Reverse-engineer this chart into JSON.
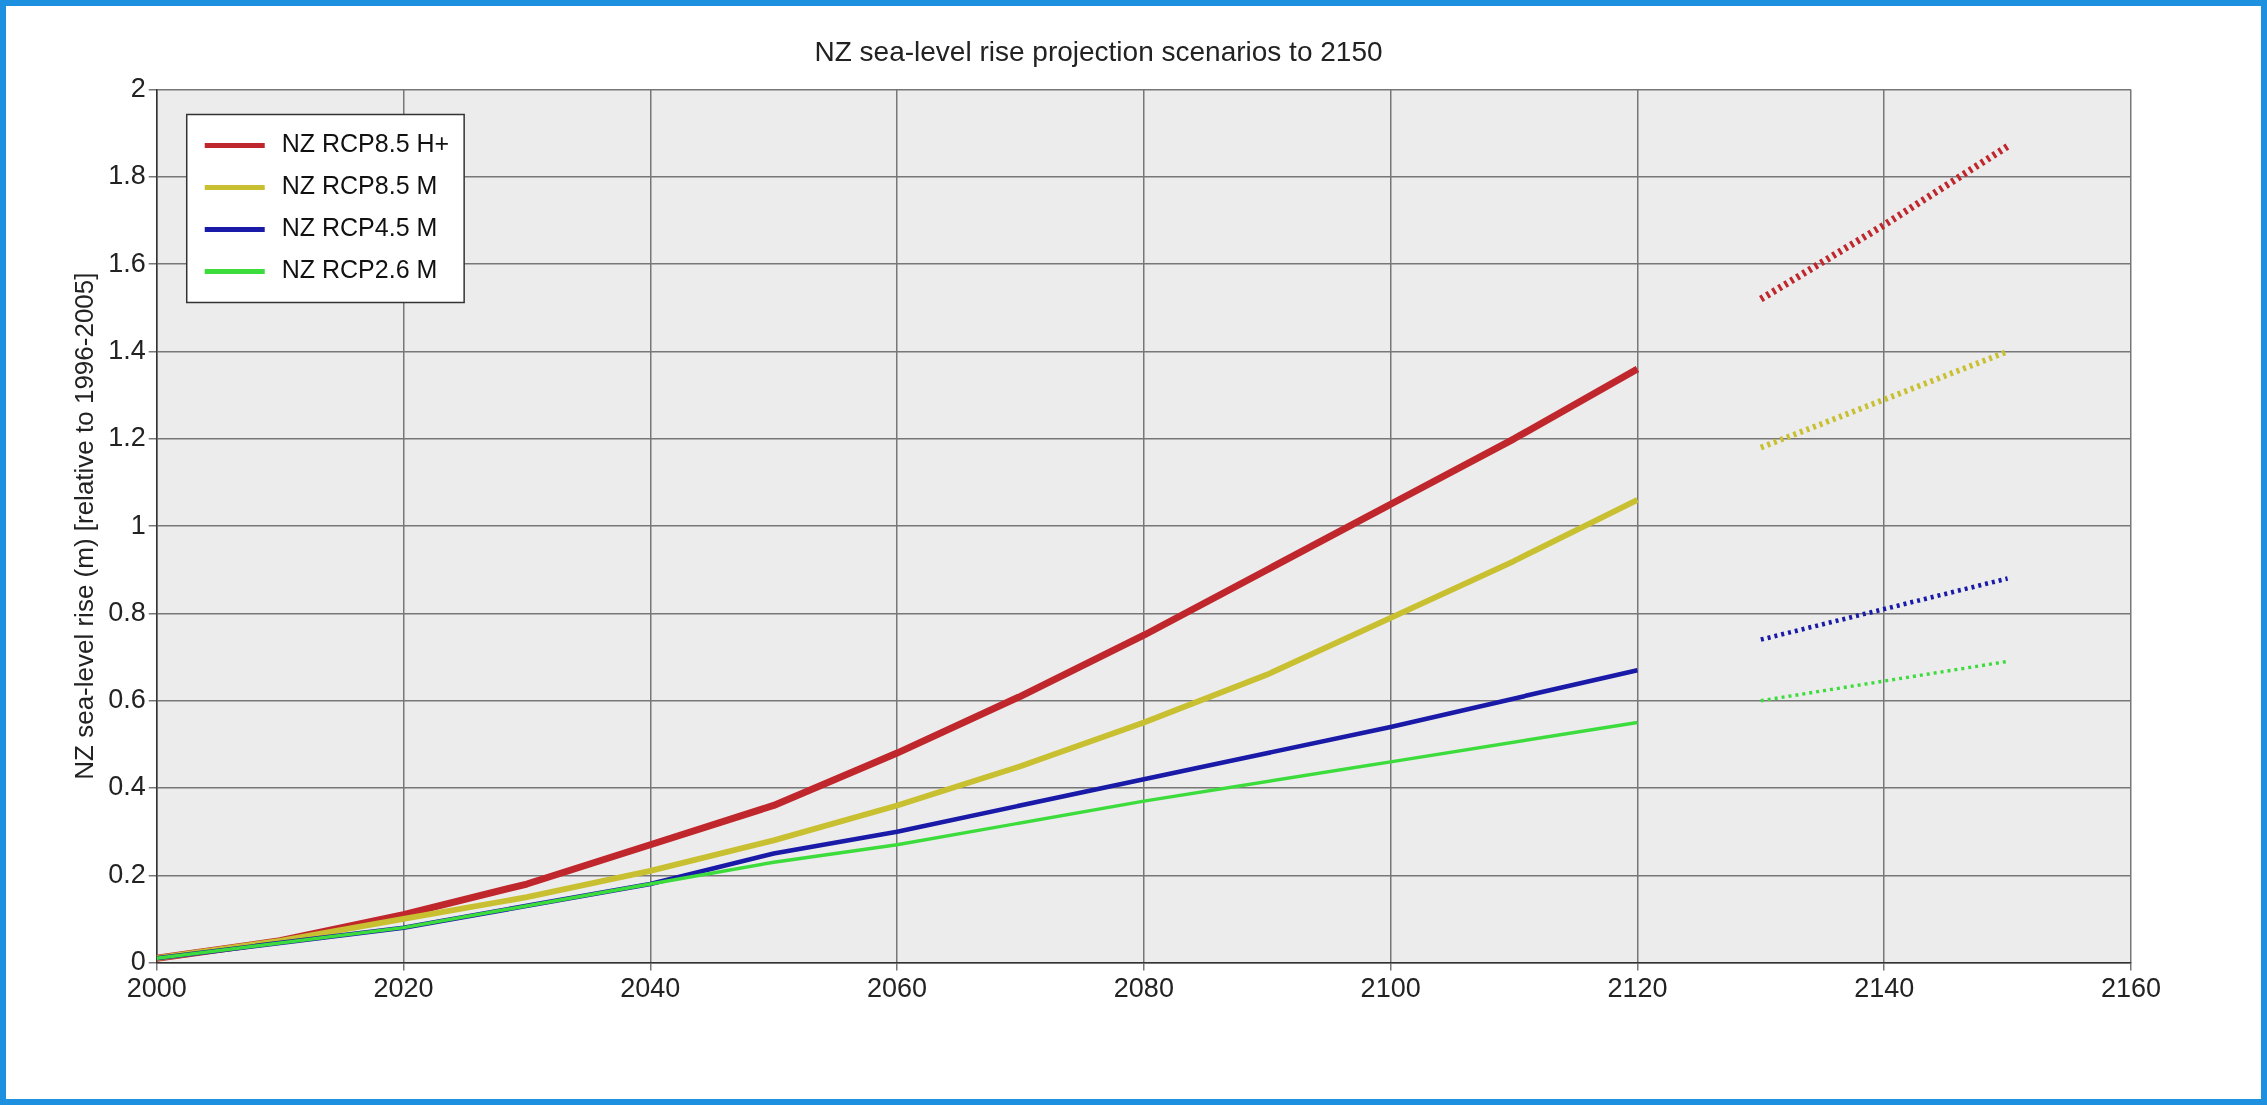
{
  "chart_data": {
    "type": "line",
    "title": "NZ sea-level rise projection scenarios to 2150",
    "ylabel": "NZ sea-level rise (m) [relative to 1996-2005]",
    "xlim": [
      2000,
      2160
    ],
    "xticks": [
      2000,
      2020,
      2040,
      2060,
      2080,
      2100,
      2120,
      2140,
      2160
    ],
    "ylim": [
      0,
      2
    ],
    "yticks": [
      0,
      0.2,
      0.4,
      0.6,
      0.8,
      1,
      1.2,
      1.4,
      1.6,
      1.8,
      2
    ],
    "grid": true,
    "legend": "top left",
    "marker": "none",
    "series": [
      {
        "name": "NZ RCP8.5 H+",
        "color": "#c0272d",
        "line_style": "solid",
        "x": [
          2000,
          2010,
          2020,
          2030,
          2040,
          2050,
          2060,
          2070,
          2080,
          2090,
          2100,
          2110,
          2120
        ],
        "values": [
          0.01,
          0.05,
          0.11,
          0.18,
          0.27,
          0.36,
          0.48,
          0.61,
          0.75,
          0.9,
          1.05,
          1.2,
          1.36
        ]
      },
      {
        "name": "NZ RCP8.5 M",
        "color": "#c8c030",
        "line_style": "solid",
        "x": [
          2000,
          2010,
          2020,
          2030,
          2040,
          2050,
          2060,
          2070,
          2080,
          2090,
          2100,
          2110,
          2120
        ],
        "values": [
          0.01,
          0.05,
          0.1,
          0.15,
          0.21,
          0.28,
          0.36,
          0.45,
          0.55,
          0.66,
          0.79,
          0.92,
          1.06
        ]
      },
      {
        "name": "NZ RCP4.5 M",
        "color": "#1a1aa8",
        "line_style": "solid",
        "x": [
          2000,
          2020,
          2040,
          2050,
          2060,
          2080,
          2100,
          2120
        ],
        "values": [
          0.01,
          0.08,
          0.18,
          0.25,
          0.3,
          0.42,
          0.54,
          0.67
        ]
      },
      {
        "name": "NZ RCP2.6 M",
        "color": "#3ddc3d",
        "line_style": "solid",
        "x": [
          2000,
          2020,
          2040,
          2050,
          2060,
          2080,
          2100,
          2120
        ],
        "values": [
          0.01,
          0.08,
          0.18,
          0.23,
          0.27,
          0.37,
          0.46,
          0.55
        ]
      },
      {
        "color": "#c0272d",
        "line_style": "dotted",
        "x": [
          2130,
          2140,
          2150
        ],
        "values": [
          1.52,
          1.69,
          1.87
        ]
      },
      {
        "color": "#c8c030",
        "line_style": "dotted",
        "x": [
          2130,
          2150
        ],
        "values": [
          1.18,
          1.4
        ]
      },
      {
        "color": "#1a1aa8",
        "line_style": "dotted",
        "x": [
          2130,
          2150
        ],
        "values": [
          0.74,
          0.88
        ]
      },
      {
        "color": "#3ddc3d",
        "line_style": "dotted",
        "x": [
          2130,
          2150
        ],
        "values": [
          0.6,
          0.69
        ]
      }
    ]
  }
}
